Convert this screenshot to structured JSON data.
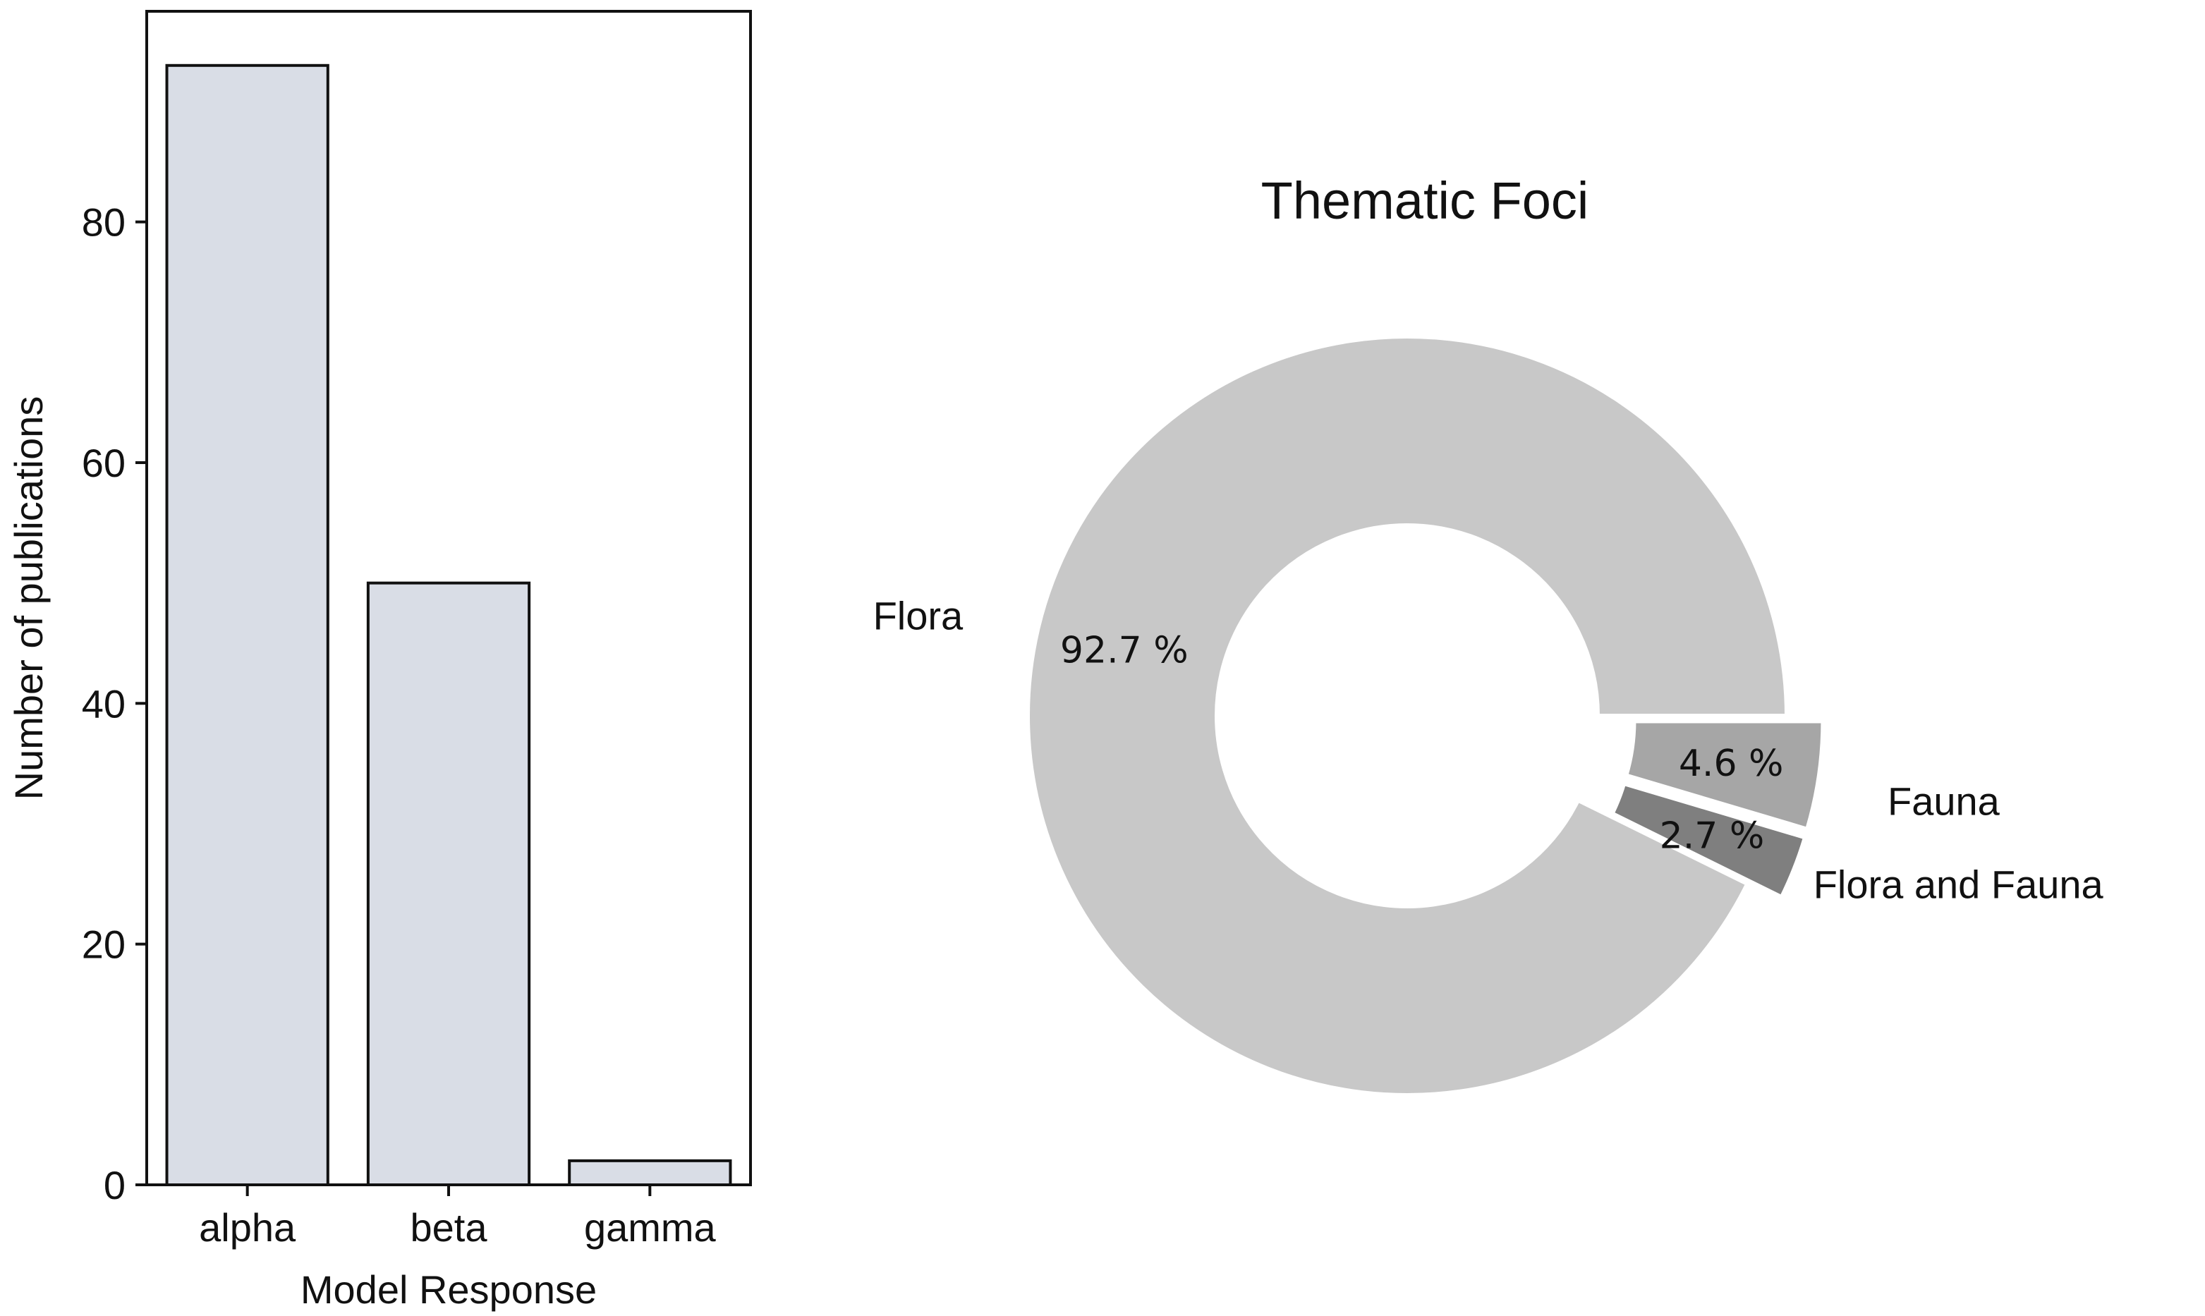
{
  "chart_data": [
    {
      "type": "bar",
      "categories": [
        "alpha",
        "beta",
        "gamma"
      ],
      "values": [
        93,
        50,
        2
      ],
      "xlabel": "Model Response",
      "ylabel": "Number of publications",
      "ylim": [
        0,
        97.5
      ],
      "yticks": [
        0,
        20,
        40,
        60,
        80
      ],
      "grid": false,
      "colors": {
        "bar_fill": "#d9dde6",
        "bar_edge": "#111111",
        "axes": "#111111"
      }
    },
    {
      "type": "pie",
      "donut": true,
      "title": "Thematic Foci",
      "slices": [
        {
          "label": "Flora",
          "value": 92.7,
          "pct_label": "92.7 %",
          "color": "#c8c8c8",
          "explode": 0
        },
        {
          "label": "Flora and Fauna",
          "value": 2.7,
          "pct_label": "2.7 %",
          "color": "#7f7f7f",
          "explode": 1
        },
        {
          "label": "Fauna",
          "value": 4.6,
          "pct_label": "4.6 %",
          "color": "#a6a6a6",
          "explode": 1
        }
      ]
    }
  ]
}
